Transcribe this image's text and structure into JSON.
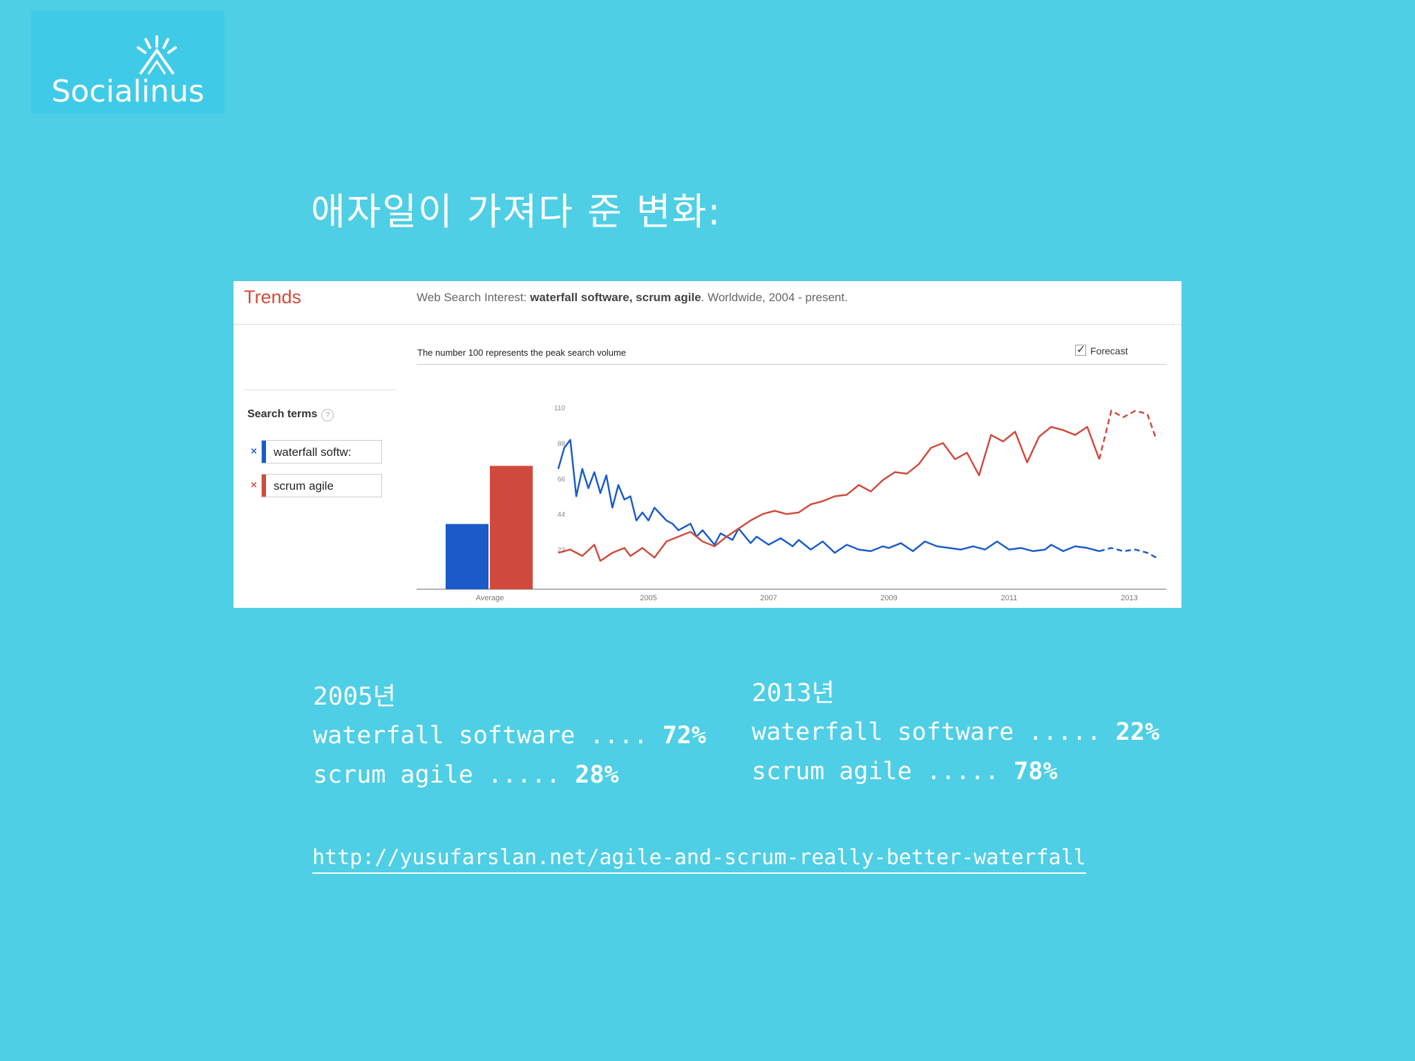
{
  "logo": {
    "name": "Socialinus"
  },
  "slide": {
    "title": "애자일이 가져다 준 변화:"
  },
  "trends": {
    "brand": "Trends",
    "header_prefix": "Web Search Interest: ",
    "header_terms": "waterfall software, scrum agile",
    "header_suffix": ". Worldwide, 2004 - present.",
    "peak_note": "The number 100 represents the peak search volume",
    "forecast_label": "Forecast",
    "search_terms_label": "Search terms",
    "terms": [
      {
        "label": "waterfall softw:",
        "color": "#1a5bc9"
      },
      {
        "label": "scrum agile",
        "color": "#cf4a3c"
      }
    ]
  },
  "chart_data": {
    "type": "line",
    "title": "",
    "y_ticks": [
      22,
      44,
      66,
      88,
      110
    ],
    "x_ticks": [
      "2005",
      "2007",
      "2009",
      "2011",
      "2013"
    ],
    "average_bars": {
      "label": "Average",
      "waterfall software": 37,
      "scrum agile": 70
    },
    "forecast_from": 2013.0,
    "series": [
      {
        "name": "waterfall software",
        "color": "#1a5bc9",
        "points": [
          [
            2004.0,
            72
          ],
          [
            2004.1,
            85
          ],
          [
            2004.2,
            90
          ],
          [
            2004.3,
            55
          ],
          [
            2004.4,
            72
          ],
          [
            2004.5,
            60
          ],
          [
            2004.6,
            70
          ],
          [
            2004.7,
            57
          ],
          [
            2004.8,
            68
          ],
          [
            2004.9,
            48
          ],
          [
            2005.0,
            62
          ],
          [
            2005.1,
            53
          ],
          [
            2005.2,
            55
          ],
          [
            2005.3,
            40
          ],
          [
            2005.4,
            45
          ],
          [
            2005.5,
            40
          ],
          [
            2005.6,
            48
          ],
          [
            2005.8,
            40
          ],
          [
            2005.9,
            38
          ],
          [
            2006.0,
            34
          ],
          [
            2006.2,
            38
          ],
          [
            2006.3,
            30
          ],
          [
            2006.4,
            34
          ],
          [
            2006.6,
            25
          ],
          [
            2006.7,
            32
          ],
          [
            2006.9,
            28
          ],
          [
            2007.0,
            35
          ],
          [
            2007.2,
            26
          ],
          [
            2007.3,
            30
          ],
          [
            2007.5,
            25
          ],
          [
            2007.7,
            29
          ],
          [
            2007.9,
            24
          ],
          [
            2008.0,
            28
          ],
          [
            2008.2,
            22
          ],
          [
            2008.4,
            27
          ],
          [
            2008.6,
            20
          ],
          [
            2008.8,
            25
          ],
          [
            2009.0,
            22
          ],
          [
            2009.2,
            21
          ],
          [
            2009.4,
            24
          ],
          [
            2009.5,
            23
          ],
          [
            2009.7,
            26
          ],
          [
            2009.9,
            21
          ],
          [
            2010.1,
            27
          ],
          [
            2010.3,
            24
          ],
          [
            2010.5,
            23
          ],
          [
            2010.7,
            22
          ],
          [
            2010.9,
            24
          ],
          [
            2011.1,
            22
          ],
          [
            2011.3,
            27
          ],
          [
            2011.5,
            22
          ],
          [
            2011.7,
            23
          ],
          [
            2011.9,
            21
          ],
          [
            2012.1,
            22
          ],
          [
            2012.2,
            25
          ],
          [
            2012.4,
            21
          ],
          [
            2012.6,
            24
          ],
          [
            2012.8,
            23
          ],
          [
            2013.0,
            21
          ],
          [
            2013.2,
            23
          ],
          [
            2013.4,
            21
          ],
          [
            2013.6,
            22
          ],
          [
            2013.8,
            20
          ],
          [
            2013.95,
            17
          ]
        ]
      },
      {
        "name": "scrum agile",
        "color": "#cf4a3c",
        "points": [
          [
            2004.0,
            20
          ],
          [
            2004.2,
            22
          ],
          [
            2004.4,
            18
          ],
          [
            2004.6,
            25
          ],
          [
            2004.7,
            15
          ],
          [
            2004.9,
            20
          ],
          [
            2005.1,
            23
          ],
          [
            2005.2,
            18
          ],
          [
            2005.4,
            23
          ],
          [
            2005.6,
            17
          ],
          [
            2005.8,
            27
          ],
          [
            2006.0,
            30
          ],
          [
            2006.2,
            33
          ],
          [
            2006.4,
            27
          ],
          [
            2006.6,
            24
          ],
          [
            2006.8,
            30
          ],
          [
            2007.0,
            35
          ],
          [
            2007.2,
            40
          ],
          [
            2007.4,
            44
          ],
          [
            2007.6,
            46
          ],
          [
            2007.8,
            44
          ],
          [
            2008.0,
            45
          ],
          [
            2008.2,
            50
          ],
          [
            2008.4,
            52
          ],
          [
            2008.6,
            55
          ],
          [
            2008.8,
            56
          ],
          [
            2009.0,
            62
          ],
          [
            2009.2,
            58
          ],
          [
            2009.4,
            65
          ],
          [
            2009.6,
            70
          ],
          [
            2009.8,
            69
          ],
          [
            2010.0,
            75
          ],
          [
            2010.2,
            85
          ],
          [
            2010.4,
            88
          ],
          [
            2010.6,
            78
          ],
          [
            2010.8,
            82
          ],
          [
            2011.0,
            68
          ],
          [
            2011.2,
            93
          ],
          [
            2011.4,
            89
          ],
          [
            2011.6,
            95
          ],
          [
            2011.8,
            76
          ],
          [
            2012.0,
            92
          ],
          [
            2012.2,
            98
          ],
          [
            2012.4,
            96
          ],
          [
            2012.6,
            93
          ],
          [
            2012.8,
            98
          ],
          [
            2013.0,
            78
          ],
          [
            2013.2,
            108
          ],
          [
            2013.4,
            104
          ],
          [
            2013.6,
            108
          ],
          [
            2013.8,
            106
          ],
          [
            2013.95,
            90
          ]
        ]
      }
    ]
  },
  "stats": {
    "left": {
      "year": "2005년",
      "line1_text": "waterfall software .... ",
      "line1_value": "72%",
      "line2_text": "scrum agile ..... ",
      "line2_value": "28%"
    },
    "right": {
      "year": "2013년",
      "line1_text": "waterfall software ..... ",
      "line1_value": "22%",
      "line2_text": "scrum agile ..... ",
      "line2_value": "78%"
    }
  },
  "source": {
    "url": "http://yusufarslan.net/agile-and-scrum-really-better-waterfall"
  }
}
